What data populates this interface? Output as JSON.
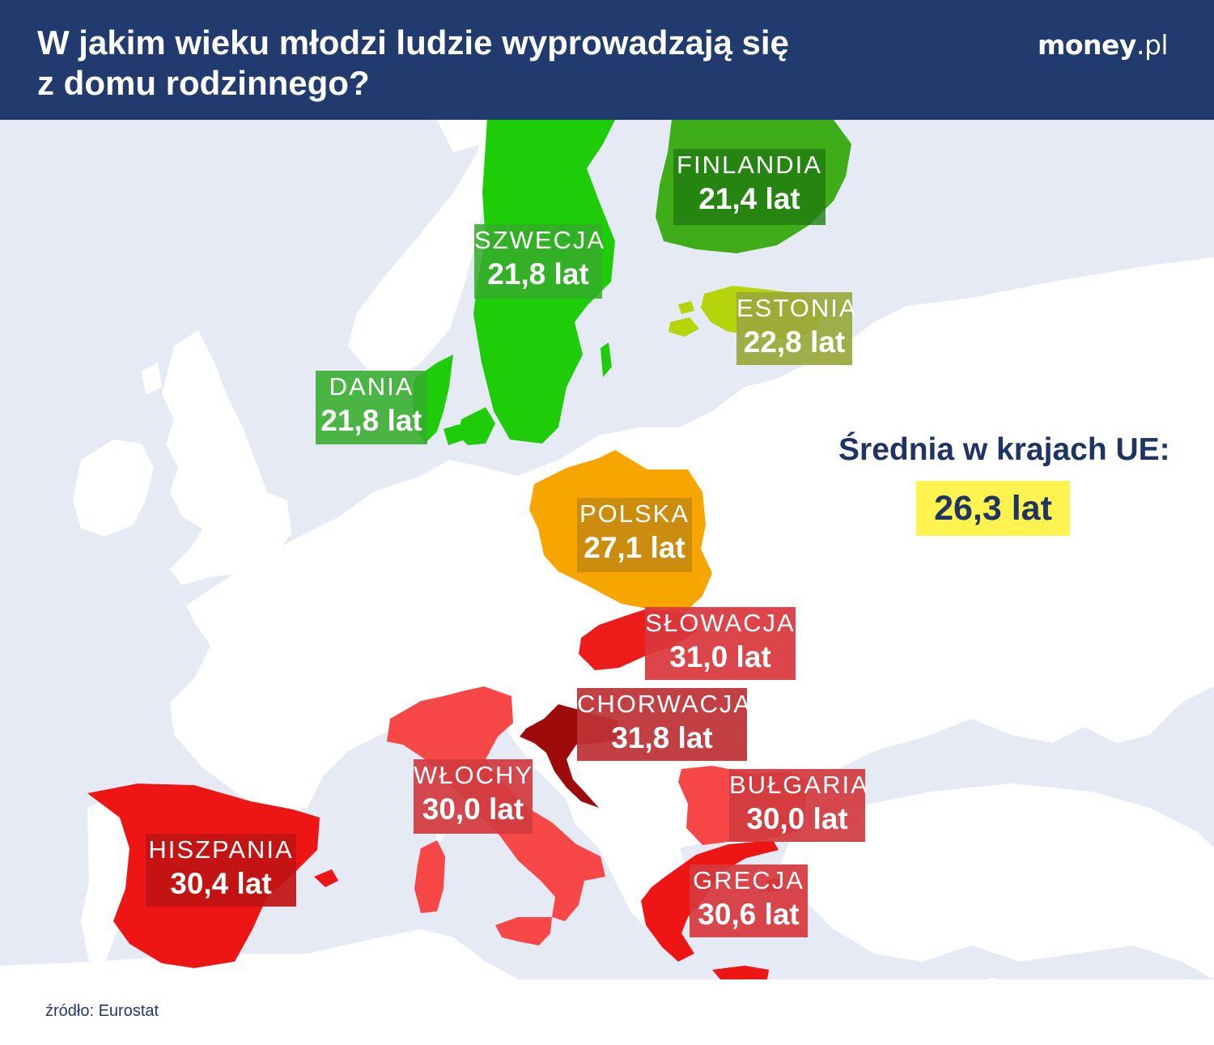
{
  "header": {
    "title_line1": "W jakim wieku młodzi ludzie wyprowadzają się",
    "title_line2": "z domu rodzinnego?",
    "logo_brand": "money",
    "logo_tld": ".pl",
    "background_color": "#213b6f"
  },
  "map": {
    "sea_color": "#e6eaf4",
    "land_color": "#ffffff",
    "countries": [
      {
        "name": "FINLANDIA",
        "value": "21,4 lat",
        "color": "#3fad1a",
        "label_color": "#1e7a0e"
      },
      {
        "name": "SZWECJA",
        "value": "21,8 lat",
        "color": "#1fcc08",
        "label_color": "#36ad2a"
      },
      {
        "name": "ESTONIA",
        "value": "22,8 lat",
        "color": "#b5d40a",
        "label_color": "#9aa83a"
      },
      {
        "name": "DANIA",
        "value": "21,8 lat",
        "color": "#1fcc08",
        "label_color": "#36ad2a"
      },
      {
        "name": "POLSKA",
        "value": "27,1 lat",
        "color": "#f7a600",
        "label_color": "#c78a0f"
      },
      {
        "name": "SŁOWACJA",
        "value": "31,0 lat",
        "color": "#ee1b1b",
        "label_color": "#d9363c"
      },
      {
        "name": "CHORWACJA",
        "value": "31,8 lat",
        "color": "#9e0b0b",
        "label_color": "#bd3235"
      },
      {
        "name": "WŁOCHY",
        "value": "30,0 lat",
        "color": "#f84747",
        "label_color": "#d23b3f"
      },
      {
        "name": "BUŁGARIA",
        "value": "30,0 lat",
        "color": "#f84747",
        "label_color": "#d23b3f"
      },
      {
        "name": "HISZPANIA",
        "value": "30,4 lat",
        "color": "#ee1515",
        "label_color": "#c11313"
      },
      {
        "name": "GRECJA",
        "value": "30,6 lat",
        "color": "#ee1515",
        "label_color": "#d6393d"
      }
    ]
  },
  "average": {
    "label": "Średnia w krajach UE:",
    "value": "26,3 lat",
    "highlight_color": "#fff44f"
  },
  "source": "źródło: Eurostat"
}
